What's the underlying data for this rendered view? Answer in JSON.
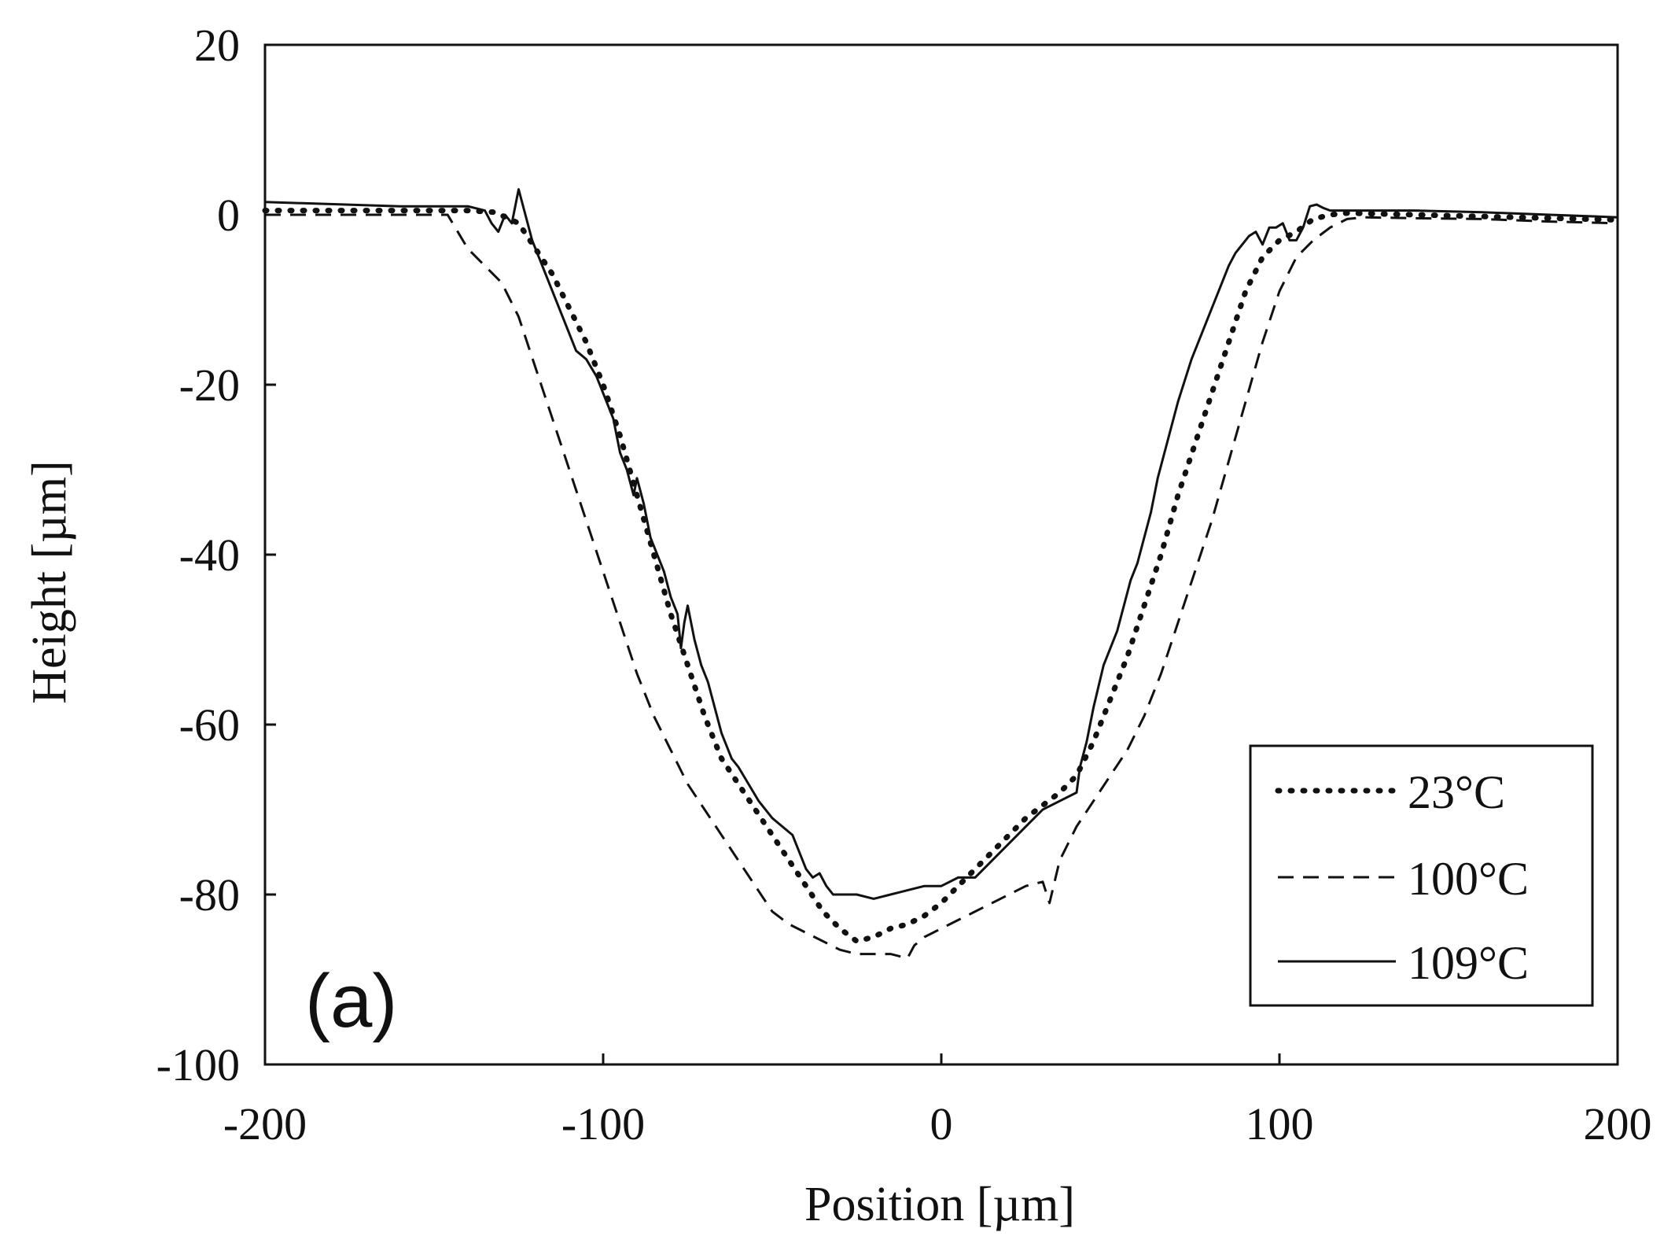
{
  "chart_data": {
    "type": "line",
    "title": "",
    "panel_label": "(a)",
    "xlabel": "Position [µm]",
    "ylabel": "Height [µm]",
    "xlim": [
      -200,
      200
    ],
    "ylim": [
      -100,
      20
    ],
    "x_ticks": [
      -200,
      -100,
      0,
      100,
      200
    ],
    "x_tick_labels": [
      "-200",
      "-100",
      "0",
      "100",
      "200"
    ],
    "y_ticks": [
      20,
      0,
      -20,
      -40,
      -60,
      -80,
      -100
    ],
    "y_tick_labels": [
      "20",
      "0",
      "-20",
      "-40",
      "-60",
      "-80",
      "-100"
    ],
    "grid": false,
    "legend_position": "bottom-right",
    "series": [
      {
        "name": "23°C",
        "style": "dotted",
        "color": "#111111",
        "x": [
          -200,
          -160,
          -140,
          -132,
          -125,
          -120,
          -115,
          -110,
          -105,
          -100,
          -95,
          -90,
          -85,
          -80,
          -75,
          -70,
          -65,
          -60,
          -55,
          -50,
          -45,
          -40,
          -35,
          -30,
          -25,
          -20,
          -15,
          -10,
          -5,
          0,
          5,
          10,
          15,
          20,
          25,
          30,
          35,
          40,
          45,
          50,
          55,
          60,
          65,
          70,
          75,
          80,
          85,
          90,
          95,
          100,
          105,
          110,
          115,
          120,
          140,
          160,
          180,
          200
        ],
        "y": [
          0.5,
          0.5,
          0.5,
          0.3,
          -1,
          -4,
          -7,
          -11,
          -15,
          -20,
          -26,
          -33,
          -40,
          -47,
          -53,
          -59,
          -64,
          -67,
          -70,
          -73,
          -76,
          -79,
          -82,
          -84,
          -85.5,
          -85,
          -84,
          -83.5,
          -82.5,
          -81,
          -79,
          -77,
          -75,
          -73,
          -71,
          -69.5,
          -68,
          -66,
          -62,
          -57,
          -52,
          -46,
          -40,
          -33,
          -27,
          -21,
          -15,
          -9,
          -5,
          -3,
          -2,
          -0.5,
          0,
          0.2,
          0,
          -0.2,
          -0.4,
          -0.6
        ]
      },
      {
        "name": "100°C",
        "style": "dashed",
        "color": "#111111",
        "x": [
          -200,
          -160,
          -146,
          -140,
          -135,
          -130,
          -125,
          -120,
          -115,
          -110,
          -105,
          -100,
          -95,
          -90,
          -85,
          -80,
          -75,
          -70,
          -65,
          -60,
          -55,
          -50,
          -45,
          -40,
          -35,
          -30,
          -25,
          -20,
          -15,
          -10,
          -8,
          -5,
          0,
          5,
          10,
          15,
          20,
          25,
          30,
          32,
          35,
          40,
          45,
          50,
          55,
          60,
          65,
          70,
          75,
          80,
          85,
          90,
          95,
          100,
          105,
          110,
          115,
          120,
          125,
          140,
          160,
          180,
          200
        ],
        "y": [
          0,
          0,
          0,
          -4,
          -6,
          -8,
          -12,
          -18,
          -24,
          -30,
          -36,
          -42,
          -48,
          -54,
          -59,
          -63,
          -67,
          -70,
          -73,
          -76,
          -79,
          -82,
          -83.5,
          -84.5,
          -85.5,
          -86.5,
          -87,
          -87,
          -87,
          -87.5,
          -86,
          -85,
          -84,
          -83,
          -82,
          -81,
          -80,
          -79,
          -78.5,
          -81,
          -76,
          -72,
          -69,
          -66,
          -63,
          -59,
          -54,
          -48,
          -42,
          -36,
          -29,
          -22,
          -15,
          -9,
          -5,
          -3,
          -1.5,
          -0.5,
          -0.3,
          -0.4,
          -0.5,
          -0.8,
          -1
        ]
      },
      {
        "name": "109°C",
        "style": "solid",
        "color": "#111111",
        "x": [
          -200,
          -160,
          -140,
          -135,
          -133,
          -131,
          -129,
          -127,
          -125,
          -123,
          -121,
          -118,
          -115,
          -112,
          -110,
          -108,
          -105,
          -102,
          -100,
          -97,
          -95,
          -93,
          -91,
          -90,
          -88,
          -86,
          -84,
          -82,
          -80,
          -78,
          -77,
          -76,
          -75,
          -73,
          -71,
          -69,
          -67,
          -65,
          -62,
          -60,
          -57,
          -54,
          -50,
          -47,
          -44,
          -40,
          -38,
          -36,
          -34,
          -32,
          -29,
          -25,
          -20,
          -15,
          -10,
          -5,
          0,
          5,
          10,
          15,
          20,
          25,
          30,
          35,
          40,
          41,
          43,
          45,
          48,
          52,
          56,
          58,
          60,
          62,
          64,
          66,
          68,
          70,
          72,
          74,
          76,
          77,
          79,
          81,
          83,
          85,
          87,
          89,
          91,
          93,
          95,
          97,
          99,
          101,
          103,
          105,
          107,
          109,
          111,
          113,
          115,
          120,
          140,
          160,
          180,
          200
        ],
        "y": [
          1.5,
          1,
          1,
          0.5,
          -1,
          -2,
          0,
          -1,
          3,
          0,
          -3,
          -6,
          -9,
          -12,
          -14,
          -16,
          -17,
          -19,
          -21,
          -24,
          -28,
          -30,
          -33,
          -31,
          -34,
          -38,
          -40,
          -42,
          -45,
          -47,
          -51,
          -48,
          -46,
          -50,
          -53,
          -55,
          -58,
          -61,
          -64,
          -65,
          -67,
          -69,
          -71,
          -72,
          -73,
          -77,
          -78,
          -77.5,
          -79,
          -80,
          -80,
          -80,
          -80.5,
          -80,
          -79.5,
          -79,
          -79,
          -78,
          -78,
          -76,
          -74,
          -72,
          -70,
          -69,
          -68,
          -65,
          -62,
          -58,
          -53,
          -49,
          -43,
          -41,
          -38,
          -35,
          -31,
          -28,
          -25,
          -22,
          -19.5,
          -17,
          -15,
          -14,
          -12,
          -10,
          -8,
          -6,
          -4.5,
          -3.5,
          -2.5,
          -2,
          -3.5,
          -1.5,
          -1.5,
          -1,
          -3,
          -3,
          -1.5,
          1,
          1.2,
          0.8,
          0.5,
          0.5,
          0.5,
          0.3,
          0,
          -0.3
        ]
      }
    ]
  }
}
